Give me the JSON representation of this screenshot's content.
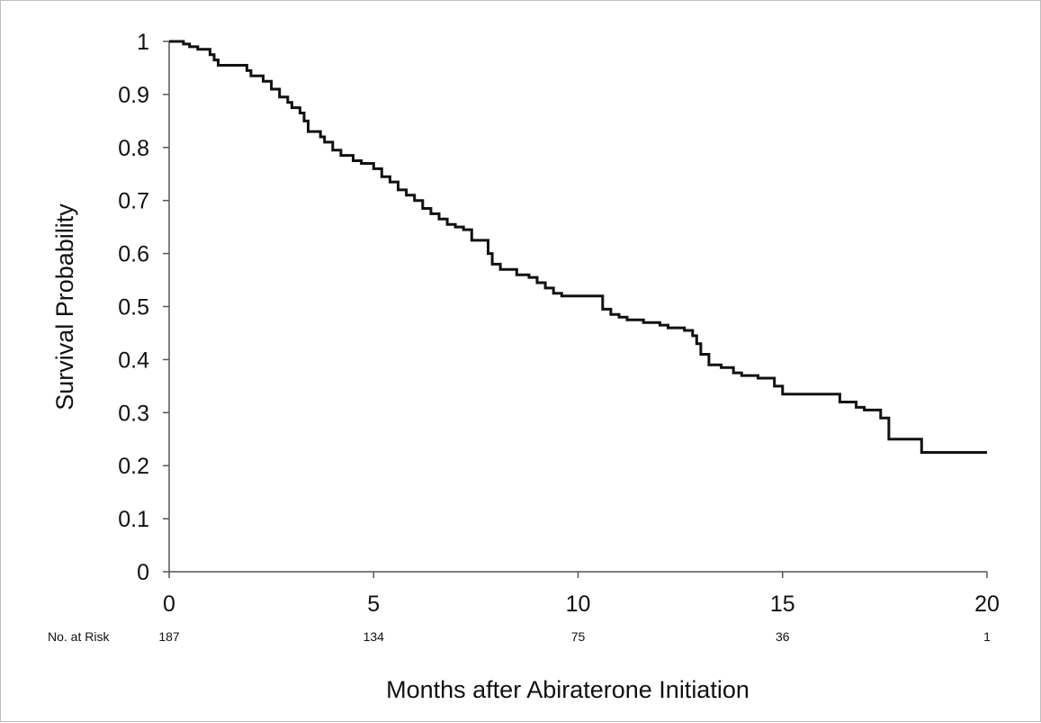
{
  "chart_data": {
    "type": "line",
    "title": "",
    "xlabel": "Months after Abiraterone Initiation",
    "ylabel": "Survival Probability",
    "xlim": [
      0,
      20
    ],
    "ylim": [
      0,
      1
    ],
    "x_ticks": [
      "0",
      "5",
      "10",
      "15",
      "20"
    ],
    "y_ticks": [
      "0",
      "0.1",
      "0.2",
      "0.3",
      "0.4",
      "0.5",
      "0.6",
      "0.7",
      "0.8",
      "0.9",
      "1"
    ],
    "grid": false,
    "legend": "none",
    "line_color": "#111111",
    "step": true,
    "series": [
      {
        "x": [
          0,
          0.35,
          0.5,
          0.7,
          1.0,
          1.1,
          1.2,
          1.9,
          2.0,
          2.3,
          2.5,
          2.7,
          2.9,
          3.0,
          3.2,
          3.3,
          3.4,
          3.7,
          3.8,
          4.0,
          4.2,
          4.5,
          4.7,
          5.0,
          5.2,
          5.4,
          5.6,
          5.8,
          6.0,
          6.2,
          6.4,
          6.6,
          6.8,
          7.0,
          7.2,
          7.4,
          7.8,
          7.9,
          8.1,
          8.5,
          8.8,
          9.0,
          9.2,
          9.4,
          9.6,
          10.6,
          10.8,
          11.0,
          11.2,
          11.6,
          12.0,
          12.2,
          12.6,
          12.8,
          12.9,
          13.0,
          13.2,
          13.5,
          13.8,
          14.0,
          14.4,
          14.8,
          15.0,
          16.4,
          16.8,
          17.0,
          17.4,
          17.6,
          18.4,
          20.0
        ],
        "y": [
          1.0,
          0.995,
          0.99,
          0.985,
          0.975,
          0.965,
          0.955,
          0.945,
          0.935,
          0.925,
          0.91,
          0.895,
          0.885,
          0.875,
          0.865,
          0.85,
          0.83,
          0.82,
          0.81,
          0.795,
          0.785,
          0.775,
          0.77,
          0.76,
          0.745,
          0.735,
          0.72,
          0.71,
          0.7,
          0.685,
          0.675,
          0.665,
          0.655,
          0.65,
          0.645,
          0.625,
          0.6,
          0.58,
          0.57,
          0.56,
          0.555,
          0.545,
          0.535,
          0.525,
          0.52,
          0.495,
          0.485,
          0.48,
          0.475,
          0.47,
          0.465,
          0.46,
          0.455,
          0.445,
          0.43,
          0.41,
          0.39,
          0.385,
          0.375,
          0.37,
          0.365,
          0.35,
          0.335,
          0.32,
          0.31,
          0.305,
          0.29,
          0.25,
          0.225,
          0.225
        ]
      }
    ],
    "risk_table": {
      "label": "No. at Risk",
      "values": [
        "187",
        "134",
        "75",
        "36",
        "1"
      ]
    }
  }
}
